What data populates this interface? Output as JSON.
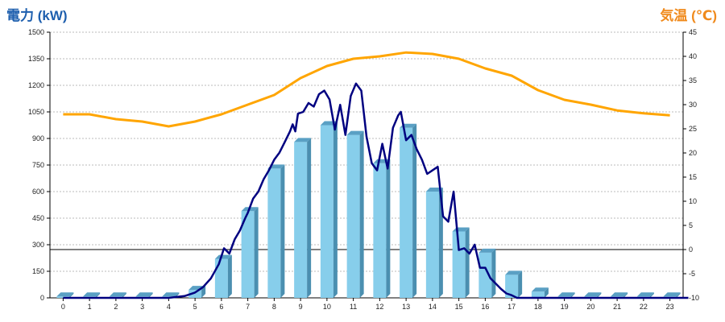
{
  "chart_data": {
    "type": "bar",
    "ylabel_left": "電力 (kW)",
    "ylabel_right": "気温 (℃)",
    "categories": [
      "0",
      "1",
      "2",
      "3",
      "4",
      "5",
      "6",
      "7",
      "8",
      "9",
      "10",
      "11",
      "12",
      "13",
      "14",
      "15",
      "16",
      "17",
      "18",
      "19",
      "20",
      "21",
      "22",
      "23"
    ],
    "ylim_left": [
      0,
      1500
    ],
    "ylim_right": [
      -10,
      45
    ],
    "yticks_left": [
      0,
      150,
      300,
      450,
      600,
      750,
      900,
      1050,
      1200,
      1350,
      1500
    ],
    "yticks_right": [
      -10,
      -5,
      0,
      5,
      10,
      15,
      20,
      25,
      30,
      35,
      40,
      45
    ],
    "grid": true,
    "series": [
      {
        "kind": "bar",
        "color": "#87ceeb",
        "values": [
          8,
          8,
          8,
          8,
          8,
          45,
          220,
          490,
          730,
          880,
          975,
          920,
          760,
          960,
          600,
          375,
          255,
          130,
          35,
          8,
          8,
          8,
          8,
          8
        ]
      },
      {
        "kind": "line",
        "color": "#000080",
        "x": [
          0,
          4,
          4.6,
          5,
          5.3,
          5.6,
          5.9,
          6.1,
          6.3,
          6.5,
          6.7,
          6.9,
          7,
          7.2,
          7.4,
          7.6,
          7.8,
          8,
          8.2,
          8.4,
          8.6,
          8.7,
          8.8,
          8.9,
          9.1,
          9.3,
          9.5,
          9.7,
          9.9,
          10.1,
          10.3,
          10.5,
          10.7,
          10.9,
          11.1,
          11.3,
          11.5,
          11.7,
          11.9,
          12.1,
          12.3,
          12.5,
          12.7,
          12.8,
          13,
          13.2,
          13.4,
          13.6,
          13.8,
          14,
          14.2,
          14.4,
          14.6,
          14.8,
          15,
          15.2,
          15.4,
          15.6,
          15.8,
          16,
          16.2,
          16.4,
          16.6,
          16.8,
          17,
          17.2,
          17.4,
          17.6,
          17.8,
          18,
          23.7
        ],
        "values": [
          0,
          0,
          10,
          30,
          60,
          110,
          190,
          280,
          250,
          330,
          380,
          450,
          480,
          560,
          600,
          670,
          720,
          780,
          820,
          880,
          940,
          980,
          940,
          1040,
          1050,
          1100,
          1080,
          1150,
          1170,
          1120,
          950,
          1090,
          920,
          1140,
          1210,
          1170,
          910,
          760,
          720,
          870,
          730,
          960,
          1030,
          1050,
          890,
          920,
          840,
          780,
          700,
          720,
          740,
          460,
          430,
          600,
          270,
          280,
          250,
          300,
          170,
          170,
          110,
          80,
          50,
          25,
          15,
          0,
          0,
          0,
          0,
          0,
          0
        ]
      },
      {
        "kind": "line",
        "color": "#ffa500",
        "x": [
          0,
          1,
          2,
          3,
          4,
          5,
          6,
          7,
          8,
          9,
          10,
          11,
          12,
          13,
          14,
          15,
          16,
          17,
          18,
          19,
          20,
          21,
          22,
          23
        ],
        "values": [
          28,
          28,
          27,
          26.5,
          25.5,
          26.5,
          28,
          30,
          32,
          35.5,
          38,
          39.5,
          40,
          40.8,
          40.5,
          39.5,
          37.5,
          36,
          33,
          31,
          30,
          28.8,
          28.2,
          27.8
        ]
      }
    ]
  }
}
